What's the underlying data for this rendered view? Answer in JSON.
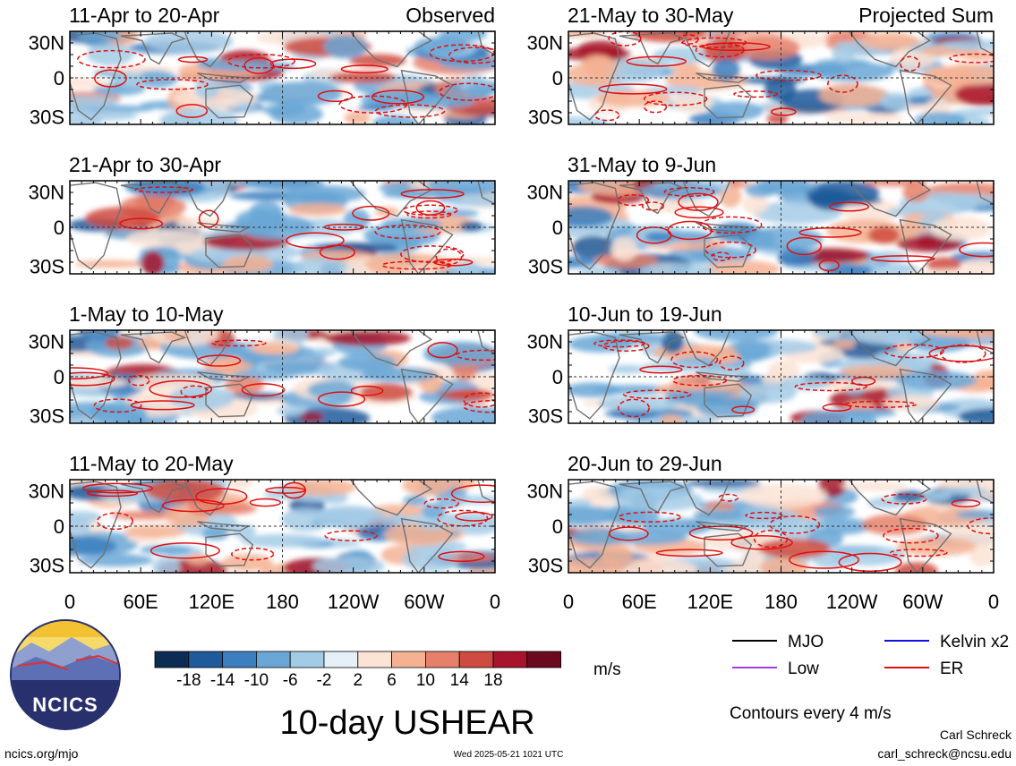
{
  "chart_data": {
    "type": "heatmap",
    "title": "10-day USHEAR",
    "units": "m/s",
    "contour_note": "Contours every 4 m/s",
    "observed_label": "Observed",
    "projected_label": "Projected Sum",
    "x_ticks": [
      "0",
      "60E",
      "120E",
      "180",
      "120W",
      "60W",
      "0"
    ],
    "y_ticks": [
      "30N",
      "0",
      "30S"
    ],
    "colorbar": {
      "ticks": [
        "-18",
        "-14",
        "-10",
        "-6",
        "-2",
        "2",
        "6",
        "10",
        "14",
        "18"
      ],
      "colors": [
        "#0d2c54",
        "#1f5a9a",
        "#3b7fc0",
        "#6aa7d6",
        "#a4cbe6",
        "#e5f0f8",
        "#fbe3d5",
        "#f5b293",
        "#e6806a",
        "#cf4b41",
        "#a8142b",
        "#6b0a1f"
      ]
    },
    "panels": [
      {
        "period": "11-Apr to 20-Apr",
        "kind": "observed"
      },
      {
        "period": "21-Apr to 30-Apr",
        "kind": "observed"
      },
      {
        "period": "1-May to 10-May",
        "kind": "observed"
      },
      {
        "period": "11-May to 20-May",
        "kind": "observed"
      },
      {
        "period": "21-May to 30-May",
        "kind": "projected"
      },
      {
        "period": "31-May to 9-Jun",
        "kind": "projected"
      },
      {
        "period": "10-Jun to 19-Jun",
        "kind": "projected"
      },
      {
        "period": "20-Jun to 29-Jun",
        "kind": "projected"
      }
    ],
    "legend": [
      {
        "name": "MJO",
        "color": "#000000"
      },
      {
        "name": "Kelvin x2",
        "color": "#1010e0"
      },
      {
        "name": "Low",
        "color": "#a040e0"
      },
      {
        "name": "ER",
        "color": "#e01010"
      }
    ]
  },
  "logo": {
    "text": "NCICS"
  },
  "footer": {
    "url": "ncics.org/mjo",
    "timestamp": "Wed 2025-05-21 1021 UTC",
    "author": "Carl Schreck",
    "email": "carl_schreck@ncsu.edu"
  }
}
